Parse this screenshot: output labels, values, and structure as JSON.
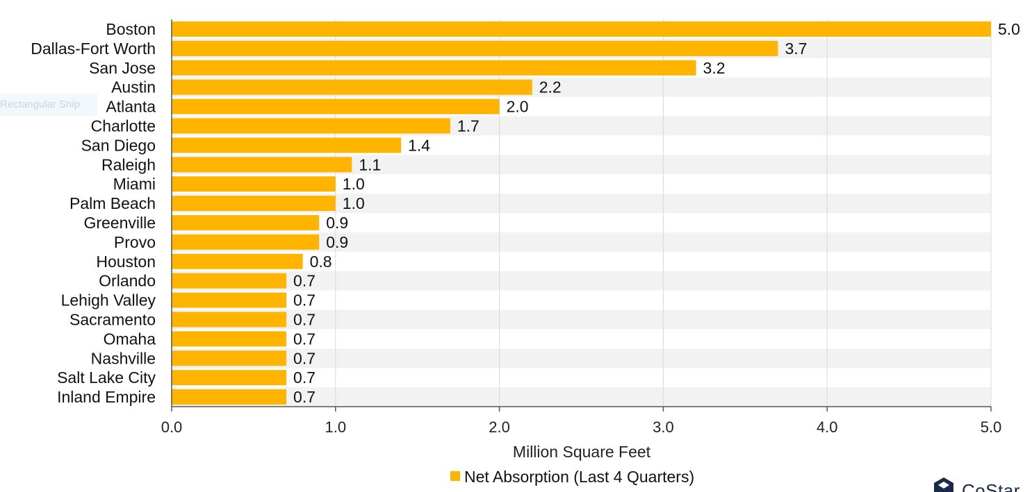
{
  "chart_data": {
    "type": "bar",
    "orientation": "horizontal",
    "categories": [
      "Boston",
      "Dallas-Fort Worth",
      "San Jose",
      "Austin",
      "Atlanta",
      "Charlotte",
      "San Diego",
      "Raleigh",
      "Miami",
      "Palm Beach",
      "Greenville",
      "Provo",
      "Houston",
      "Orlando",
      "Lehigh Valley",
      "Sacramento",
      "Omaha",
      "Nashville",
      "Salt Lake City",
      "Inland Empire"
    ],
    "values": [
      5.0,
      3.7,
      3.2,
      2.2,
      2.0,
      1.7,
      1.4,
      1.1,
      1.0,
      1.0,
      0.9,
      0.9,
      0.8,
      0.7,
      0.7,
      0.7,
      0.7,
      0.7,
      0.7,
      0.7
    ],
    "value_labels": [
      "5.0",
      "3.7",
      "3.2",
      "2.2",
      "2.0",
      "1.7",
      "1.4",
      "1.1",
      "1.0",
      "1.0",
      "0.9",
      "0.9",
      "0.8",
      "0.7",
      "0.7",
      "0.7",
      "0.7",
      "0.7",
      "0.7",
      "0.7"
    ],
    "xlabel": "Million Square Feet",
    "xlim": [
      0,
      5.0
    ],
    "xticks": [
      "0.0",
      "1.0",
      "2.0",
      "3.0",
      "4.0",
      "5.0"
    ],
    "grid": "vertical",
    "legend": {
      "placement": "bottom",
      "entries": [
        "Net Absorption (Last 4 Quarters)"
      ]
    },
    "bar_color": "#FFB400",
    "band_color": "#F2F2F2"
  },
  "overlay": {
    "snip_label": "Rectangular Snip"
  },
  "brand": {
    "logo_text": "CoStar",
    "logo_color": "#1B2A4A"
  }
}
